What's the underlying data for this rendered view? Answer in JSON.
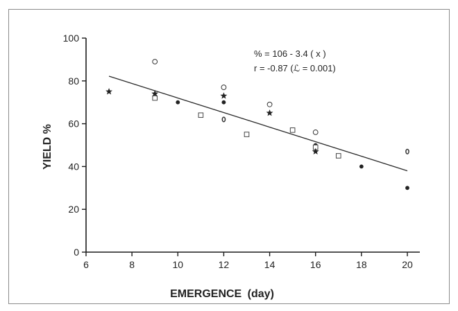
{
  "chart_data": {
    "type": "scatter",
    "title": "",
    "xlabel": "EMERGENCE",
    "xlabel_unit": "(day)",
    "ylabel": "YIELD %",
    "xlim": [
      6,
      20
    ],
    "ylim": [
      0,
      100
    ],
    "xticks": [
      6,
      8,
      10,
      12,
      14,
      16,
      18,
      20
    ],
    "yticks": [
      0,
      20,
      40,
      60,
      80,
      100
    ],
    "grid": false,
    "annotations": [
      "% = 106 - 3.4 ( x )",
      "r = -0.87 (ℒ = 0.001)"
    ],
    "fit_line": {
      "intercept": 106,
      "slope": -3.4,
      "x_range": [
        7,
        20
      ]
    },
    "series": [
      {
        "marker": "open-circle",
        "points": [
          [
            9,
            89
          ],
          [
            12,
            77
          ],
          [
            14,
            69
          ],
          [
            16,
            56
          ]
        ]
      },
      {
        "marker": "filled-circle",
        "points": [
          [
            10,
            70
          ],
          [
            12,
            70
          ],
          [
            16,
            50
          ],
          [
            18,
            40
          ],
          [
            20,
            30
          ]
        ]
      },
      {
        "marker": "open-square",
        "points": [
          [
            9,
            72
          ],
          [
            11,
            64
          ],
          [
            13,
            55
          ],
          [
            15,
            57
          ],
          [
            16,
            49
          ],
          [
            17,
            45
          ]
        ]
      },
      {
        "marker": "star",
        "points": [
          [
            7,
            75
          ],
          [
            9,
            74
          ],
          [
            12,
            73
          ],
          [
            14,
            65
          ],
          [
            16,
            47
          ]
        ]
      },
      {
        "marker": "zero-glyph",
        "points": [
          [
            12,
            62
          ],
          [
            20,
            47
          ]
        ]
      }
    ]
  }
}
